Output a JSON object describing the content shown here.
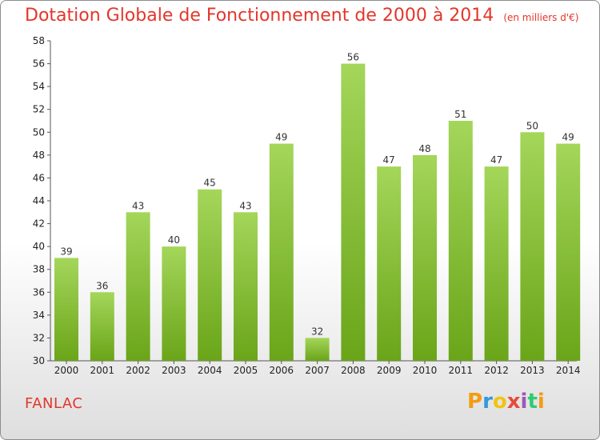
{
  "header": {
    "title": "Dotation Globale de Fonctionnement de 2000 à 2014",
    "unit": "(en milliers d'€)"
  },
  "footer": {
    "commune": "FANLAC",
    "logo_text": "Proxiti"
  },
  "chart_data": {
    "type": "bar",
    "title": "Dotation Globale de Fonctionnement de 2000 à 2014",
    "subtitle": "(en milliers d'€)",
    "xlabel": "",
    "ylabel": "",
    "categories": [
      "2000",
      "2001",
      "2002",
      "2003",
      "2004",
      "2005",
      "2006",
      "2007",
      "2008",
      "2009",
      "2010",
      "2011",
      "2012",
      "2013",
      "2014"
    ],
    "values": [
      39,
      36,
      43,
      40,
      45,
      43,
      49,
      32,
      56,
      47,
      48,
      51,
      47,
      50,
      49
    ],
    "ylim": [
      30,
      58
    ],
    "yticks": [
      30,
      32,
      34,
      36,
      38,
      40,
      42,
      44,
      46,
      48,
      50,
      52,
      54,
      56,
      58
    ],
    "grid": false,
    "bar_color_top": "#a4d65a",
    "bar_color_bottom": "#6aa519",
    "data_labels": true
  }
}
